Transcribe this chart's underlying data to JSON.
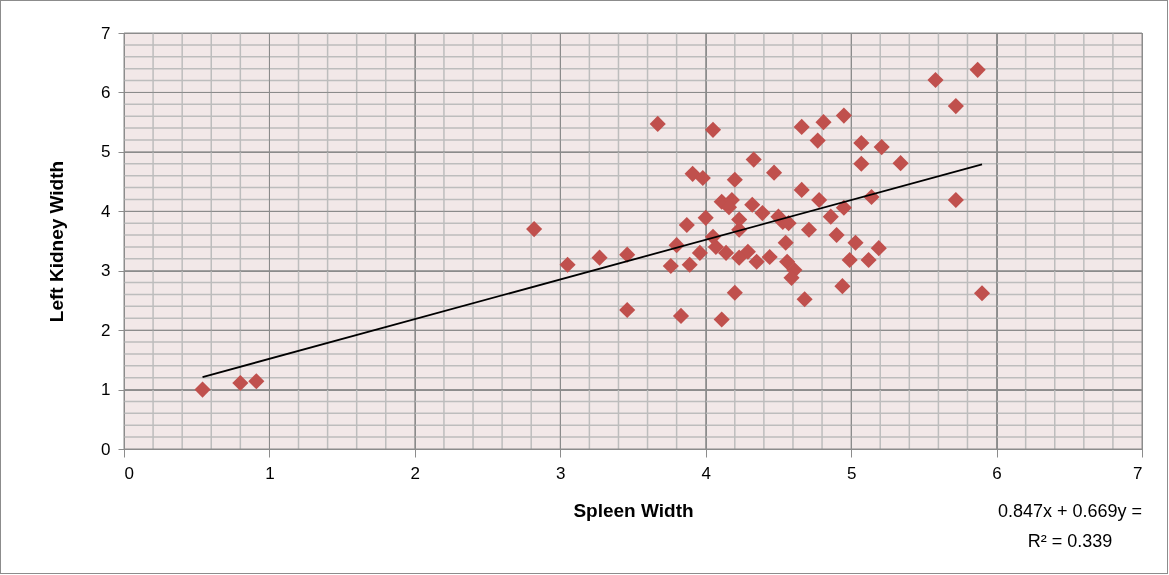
{
  "chart_data": {
    "type": "scatter",
    "xlabel": "Spleen Width",
    "ylabel": "Left Kidney Width",
    "xlim": [
      0,
      7
    ],
    "ylim": [
      0,
      7
    ],
    "xticks": [
      0,
      1,
      2,
      3,
      4,
      5,
      6,
      7
    ],
    "yticks": [
      0,
      1,
      2,
      3,
      4,
      5,
      6,
      7
    ],
    "grid": true,
    "marker": "diamond",
    "annotations": [
      "0.847x + 0.669y =",
      "R² = 0.339"
    ],
    "series": [
      {
        "color": "#c0504d",
        "x": [
          0.54,
          0.8,
          0.91,
          2.82,
          3.05,
          3.27,
          3.46,
          3.46,
          3.67,
          3.83,
          4.05,
          3.91,
          3.98,
          4.2,
          4.33,
          4.47,
          4.66,
          4.81,
          4.77,
          4.95,
          5.07,
          5.21,
          5.07,
          5.34,
          5.58,
          5.72,
          5.72,
          5.87,
          5.9,
          4.66,
          4.78,
          4.95,
          5.14,
          4.86,
          4.71,
          4.9,
          5.03,
          5.19,
          4.99,
          5.12,
          4.94,
          4.68,
          4.2,
          4.11,
          4.61,
          4.59,
          4.56,
          4.55,
          4.53,
          4.44,
          4.35,
          4.29,
          4.23,
          4.14,
          4.07,
          4.05,
          3.96,
          3.89,
          3.76,
          3.8,
          3.87,
          4.0,
          4.11,
          4.18,
          4.23,
          4.23,
          4.32,
          4.39,
          4.5,
          4.57,
          4.16
        ],
        "values": [
          1.0,
          1.11,
          1.14,
          3.7,
          3.1,
          3.22,
          3.27,
          2.34,
          5.47,
          2.24,
          5.37,
          4.63,
          4.56,
          4.53,
          4.87,
          4.65,
          5.42,
          5.5,
          5.19,
          5.61,
          5.15,
          5.08,
          4.8,
          4.81,
          6.21,
          5.77,
          4.19,
          6.38,
          2.62,
          4.36,
          4.19,
          4.06,
          4.24,
          3.91,
          3.69,
          3.6,
          3.47,
          3.38,
          3.18,
          3.18,
          2.74,
          2.52,
          2.63,
          2.18,
          3.01,
          2.88,
          3.15,
          3.47,
          3.82,
          3.23,
          3.15,
          3.32,
          3.22,
          3.3,
          3.4,
          3.57,
          3.3,
          3.1,
          3.08,
          3.43,
          3.77,
          3.89,
          4.16,
          4.19,
          3.86,
          3.69,
          4.11,
          3.97,
          3.91,
          3.8,
          4.07
        ]
      },
      {
        "type": "line",
        "color": "#000000",
        "marker": "none",
        "x": [
          0.54,
          5.9
        ],
        "values": [
          1.21,
          4.79
        ]
      }
    ]
  }
}
